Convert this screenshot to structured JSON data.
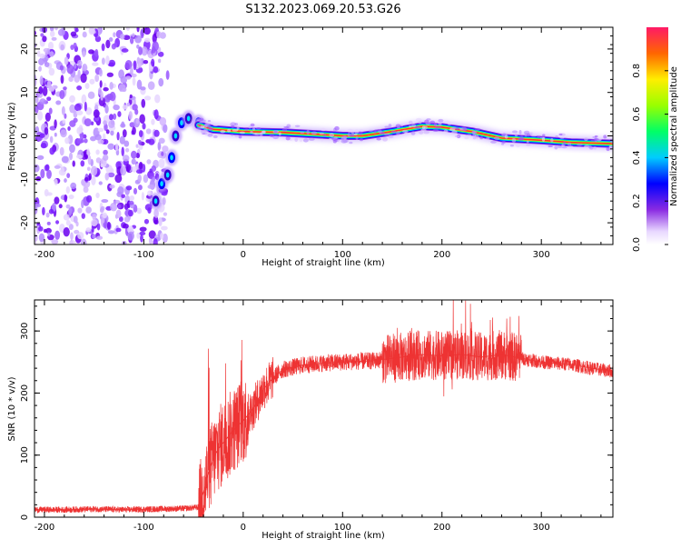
{
  "figure_title": "S132.2023.069.20.53.G26",
  "chart_data": [
    {
      "type": "heatmap",
      "title": "",
      "xlabel": "Height of straight line (km)",
      "ylabel": "Frequency (Hz)",
      "xlim": [
        -210,
        372
      ],
      "ylim": [
        -25,
        25
      ],
      "xticks": [
        -200,
        -100,
        0,
        100,
        200,
        300
      ],
      "yticks": [
        -20,
        -10,
        0,
        10,
        20
      ],
      "colorbar": {
        "label": "Normalized spectral amplitude",
        "range": [
          0,
          1
        ],
        "ticks": [
          "0.0",
          "0.2",
          "0.4",
          "0.6",
          "0.8"
        ]
      },
      "noise_region_x": [
        -210,
        -78
      ],
      "transition_track": [
        {
          "x": -88,
          "y": -15
        },
        {
          "x": -82,
          "y": -11
        },
        {
          "x": -76,
          "y": -9
        },
        {
          "x": -72,
          "y": -5
        },
        {
          "x": -68,
          "y": 0
        },
        {
          "x": -62,
          "y": 3
        },
        {
          "x": -55,
          "y": 4
        },
        {
          "x": -45,
          "y": 3
        }
      ],
      "ridge": [
        {
          "x": -45,
          "y": 2.5
        },
        {
          "x": -30,
          "y": 1.5
        },
        {
          "x": 0,
          "y": 1
        },
        {
          "x": 40,
          "y": 0.8
        },
        {
          "x": 80,
          "y": 0.3
        },
        {
          "x": 100,
          "y": 0
        },
        {
          "x": 120,
          "y": 0
        },
        {
          "x": 150,
          "y": 1
        },
        {
          "x": 180,
          "y": 2.2
        },
        {
          "x": 200,
          "y": 2
        },
        {
          "x": 230,
          "y": 1
        },
        {
          "x": 260,
          "y": -0.5
        },
        {
          "x": 300,
          "y": -1
        },
        {
          "x": 330,
          "y": -1.5
        },
        {
          "x": 372,
          "y": -1.8
        }
      ]
    },
    {
      "type": "line",
      "title": "",
      "xlabel": "Height of straight line (km)",
      "ylabel": "SNR (10 * v/v)",
      "xlim": [
        -210,
        372
      ],
      "ylim": [
        0,
        350
      ],
      "xticks": [
        -200,
        -100,
        0,
        100,
        200,
        300
      ],
      "yticks": [
        0,
        100,
        200,
        300
      ],
      "color": "#ee3333",
      "series": [
        {
          "x": [
            -210,
            -180,
            -150,
            -120,
            -90,
            -60,
            -45,
            -40,
            -35,
            -30,
            -25,
            -20,
            -15,
            -10,
            -5,
            0,
            5,
            10,
            15,
            20,
            25,
            30,
            40,
            60,
            80,
            100,
            130,
            160,
            180,
            200,
            220,
            240,
            260,
            280,
            300,
            330,
            350,
            372
          ],
          "y": [
            12,
            12,
            13,
            12,
            13,
            14,
            16,
            40,
            70,
            95,
            110,
            120,
            130,
            140,
            148,
            155,
            165,
            175,
            190,
            205,
            215,
            225,
            238,
            245,
            248,
            250,
            252,
            258,
            262,
            260,
            262,
            258,
            262,
            256,
            250,
            246,
            240,
            235
          ]
        }
      ]
    }
  ]
}
